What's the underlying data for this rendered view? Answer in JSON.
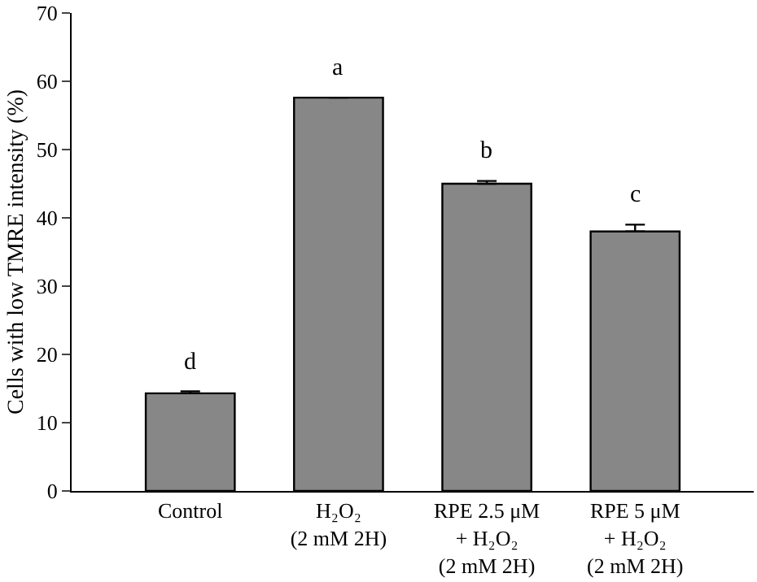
{
  "chart_data": {
    "type": "bar",
    "ylabel": "Cells with low TMRE intensity (%)",
    "categories": [
      "Control",
      "H₂O₂\n(2 mM 2H)",
      "RPE 2.5 μM\n+ H₂O₂\n(2 mM 2H)",
      "RPE 5 μM\n+ H₂O₂\n(2 mM 2H)"
    ],
    "values": [
      14.3,
      57.6,
      45.0,
      38.0
    ],
    "errors": [
      0.3,
      null,
      0.4,
      1.0
    ],
    "color": "#878787",
    "ylim": [
      0,
      70
    ],
    "yticks": [
      0,
      10,
      20,
      30,
      40,
      50,
      60,
      70
    ],
    "annotations": [
      "d",
      "a",
      "b",
      "c"
    ]
  }
}
